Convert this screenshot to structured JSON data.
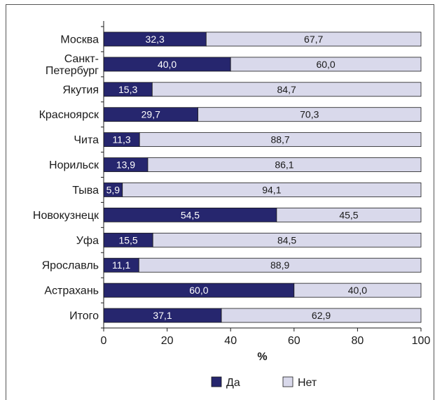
{
  "chart_data": {
    "type": "bar",
    "stacked": true,
    "orientation": "horizontal",
    "categories": [
      "Москва",
      "Санкт-\nПетербург",
      "Якутия",
      "Красноярск",
      "Чита",
      "Норильск",
      "Тыва",
      "Новокузнецк",
      "Уфа",
      "Ярославль",
      "Астрахань",
      "Итого"
    ],
    "series": [
      {
        "name": "Да",
        "color": "#26266e",
        "values": [
          32.3,
          40.0,
          15.3,
          29.7,
          11.3,
          13.9,
          5.9,
          54.5,
          15.5,
          11.1,
          60.0,
          37.1
        ],
        "labels": [
          "32,3",
          "40,0",
          "15,3",
          "29,7",
          "11,3",
          "13,9",
          "5,9",
          "54,5",
          "15,5",
          "11,1",
          "60,0",
          "37,1"
        ]
      },
      {
        "name": "Нет",
        "color": "#d9d9eb",
        "values": [
          67.7,
          60.0,
          84.7,
          70.3,
          88.7,
          86.1,
          94.1,
          45.5,
          84.5,
          88.9,
          40.0,
          62.9
        ],
        "labels": [
          "67,7",
          "60,0",
          "84,7",
          "70,3",
          "88,7",
          "86,1",
          "94,1",
          "45,5",
          "84,5",
          "88,9",
          "40,0",
          "62,9"
        ]
      }
    ],
    "xlabel": "%",
    "xlim": [
      0,
      100
    ],
    "xticks": [
      0,
      20,
      40,
      60,
      80,
      100
    ],
    "grid": false,
    "legend_position": "bottom"
  }
}
